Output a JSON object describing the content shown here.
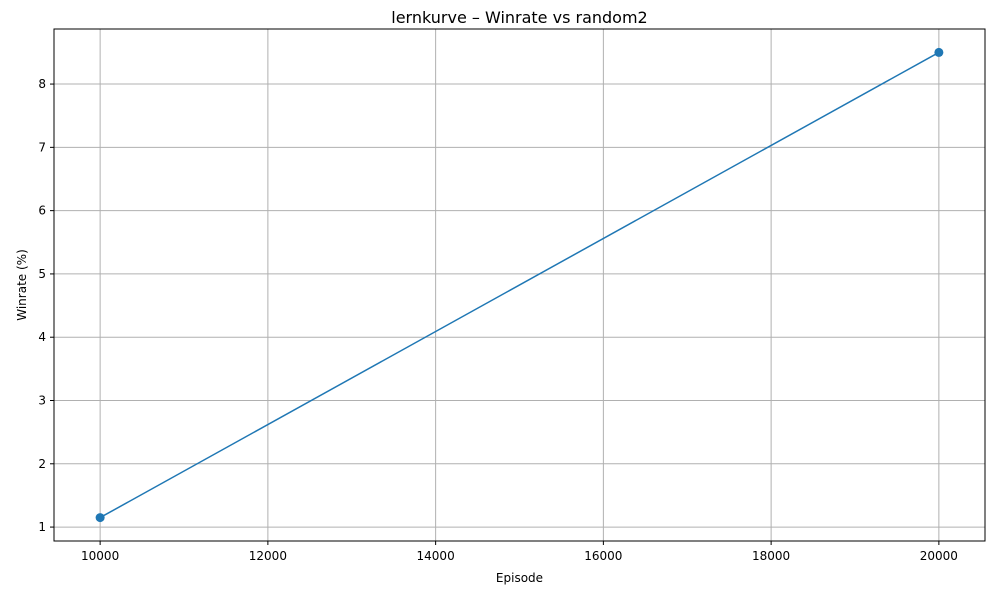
{
  "chart_data": {
    "type": "line",
    "title": "lernkurve – Winrate vs random2",
    "xlabel": "Episode",
    "ylabel": "Winrate (%)",
    "x": [
      10000,
      20000
    ],
    "series": [
      {
        "values": [
          1.15,
          8.5
        ],
        "color": "#1f77b4",
        "marker": "circle"
      }
    ],
    "xlim": [
      9450,
      20550
    ],
    "ylim": [
      0.78,
      8.87
    ],
    "xticks": [
      10000,
      12000,
      14000,
      16000,
      18000,
      20000
    ],
    "yticks": [
      1,
      2,
      3,
      4,
      5,
      6,
      7,
      8
    ],
    "grid": true,
    "colors": {
      "grid": "#b0b0b0",
      "axes": "#000000"
    }
  }
}
